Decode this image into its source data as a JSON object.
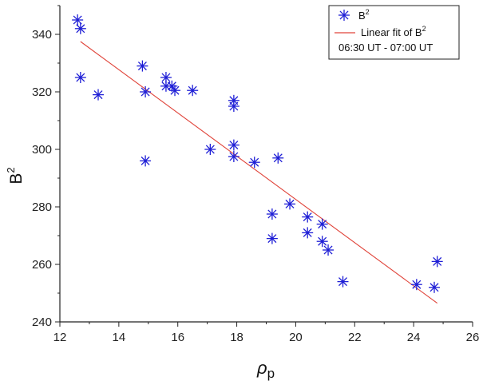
{
  "colors": {
    "marker": "#1f1fd6",
    "fit": "#e0443a",
    "axis": "#222222"
  },
  "chart_data": {
    "type": "scatter",
    "title": "",
    "xlabel": "ρ",
    "xlabel_sub": "p",
    "ylabel": "B",
    "ylabel_sup": "2",
    "xlim": [
      12,
      26
    ],
    "ylim": [
      240,
      350
    ],
    "xticks": [
      12,
      14,
      16,
      18,
      20,
      22,
      24,
      26
    ],
    "yticks": [
      240,
      260,
      280,
      300,
      320,
      340
    ],
    "grid": false,
    "legend_position": "top-right",
    "legend": {
      "scatter_label": "B",
      "scatter_label_sup": "2",
      "fit_label": "Linear fit of B",
      "fit_label_sup": "2",
      "time_range": "06:30 UT - 07:00 UT"
    },
    "series": [
      {
        "name": "B²",
        "kind": "scatter",
        "marker": "asterisk",
        "points": [
          [
            12.6,
            345
          ],
          [
            12.7,
            342
          ],
          [
            12.7,
            325
          ],
          [
            13.3,
            319
          ],
          [
            14.8,
            329
          ],
          [
            14.9,
            320
          ],
          [
            14.9,
            296
          ],
          [
            15.6,
            325
          ],
          [
            15.6,
            322
          ],
          [
            15.8,
            322
          ],
          [
            15.9,
            320.5
          ],
          [
            16.5,
            320.5
          ],
          [
            17.1,
            300
          ],
          [
            17.9,
            317
          ],
          [
            17.9,
            315
          ],
          [
            17.9,
            301.5
          ],
          [
            17.9,
            297.5
          ],
          [
            18.6,
            295.5
          ],
          [
            19.2,
            277.5
          ],
          [
            19.2,
            269
          ],
          [
            19.4,
            297
          ],
          [
            19.8,
            281
          ],
          [
            20.4,
            276.5
          ],
          [
            20.4,
            271
          ],
          [
            20.9,
            274
          ],
          [
            20.9,
            268
          ],
          [
            21.1,
            265
          ],
          [
            21.6,
            254
          ],
          [
            24.1,
            253
          ],
          [
            24.7,
            252
          ],
          [
            24.8,
            261
          ]
        ]
      },
      {
        "name": "Linear fit of B²",
        "kind": "line",
        "points": [
          [
            12.7,
            337.5
          ],
          [
            24.8,
            246.5
          ]
        ]
      }
    ]
  }
}
